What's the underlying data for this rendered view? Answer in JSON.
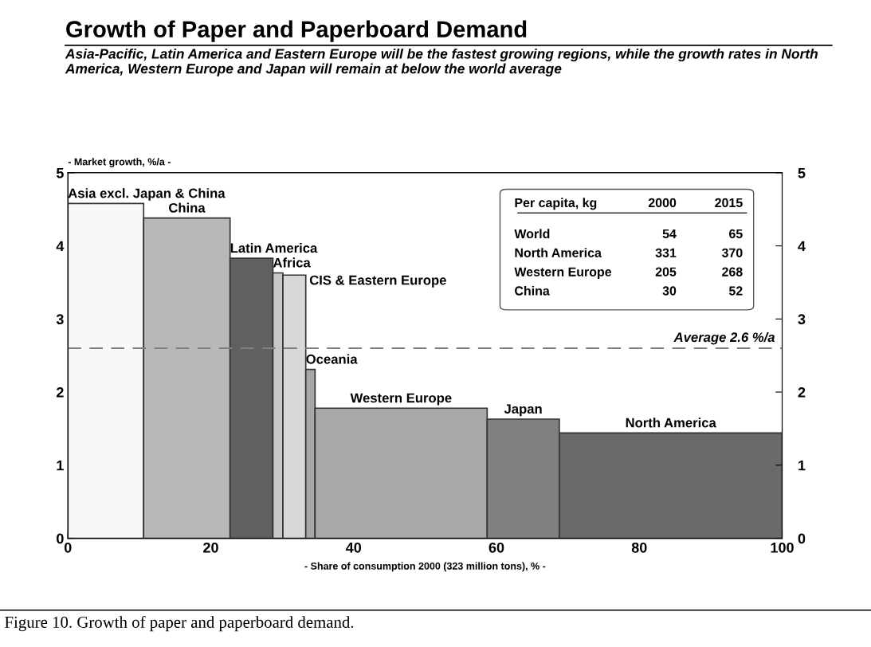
{
  "chart_data": {
    "type": "histogram",
    "title": "Growth of Paper and Paperboard Demand",
    "subtitle": "Asia-Pacific, Latin America and Eastern Europe will be the fastest growing regions, while the growth rates in North America, Western Europe and Japan will remain at below the world average",
    "ylabel": "- Market growth, %/a -",
    "xlabel": "- Share of consumption 2000 (323 million tons), % -",
    "categories": [
      "Asia excl. Japan & China",
      "China",
      "Latin America",
      "Africa",
      "CIS & Eastern Europe",
      "Oceania",
      "Western Europe",
      "Japan",
      "North America"
    ],
    "bins": [
      0,
      10.6,
      22.7,
      28.7,
      30.1,
      33.3,
      34.6,
      58.7,
      68.8,
      100
    ],
    "values": [
      4.58,
      4.38,
      3.83,
      3.63,
      3.6,
      2.31,
      1.78,
      1.63,
      1.44
    ],
    "colors": [
      "#f8f8f8",
      "#b8b8b8",
      "#606060",
      "#c8c8c8",
      "#d8d8d8",
      "#a8a8a8",
      "#a8a8a8",
      "#808080",
      "#6a6a6a"
    ],
    "xlim": [
      0,
      100
    ],
    "xticks": [
      0,
      20,
      40,
      60,
      80,
      100
    ],
    "ylim": [
      0,
      5
    ],
    "yticks": [
      0,
      1,
      2,
      3,
      4,
      5
    ],
    "y2lim": [
      0,
      5
    ],
    "y2ticks": [
      0,
      1,
      2,
      3,
      4,
      5
    ],
    "ref_lines": [
      {
        "axis": "y",
        "value": 2.6,
        "label": "Average 2.6 %/a",
        "color": "#808080",
        "line_style": "dashed"
      }
    ],
    "annotations": [
      "Per capita, kg",
      "2000",
      "2015",
      "World",
      "54",
      "65",
      "North America",
      "331",
      "370",
      "Western Europe",
      "205",
      "268",
      "China",
      "30",
      "52",
      "Figure 10. Growth of paper and paperboard demand."
    ],
    "grid": false
  }
}
